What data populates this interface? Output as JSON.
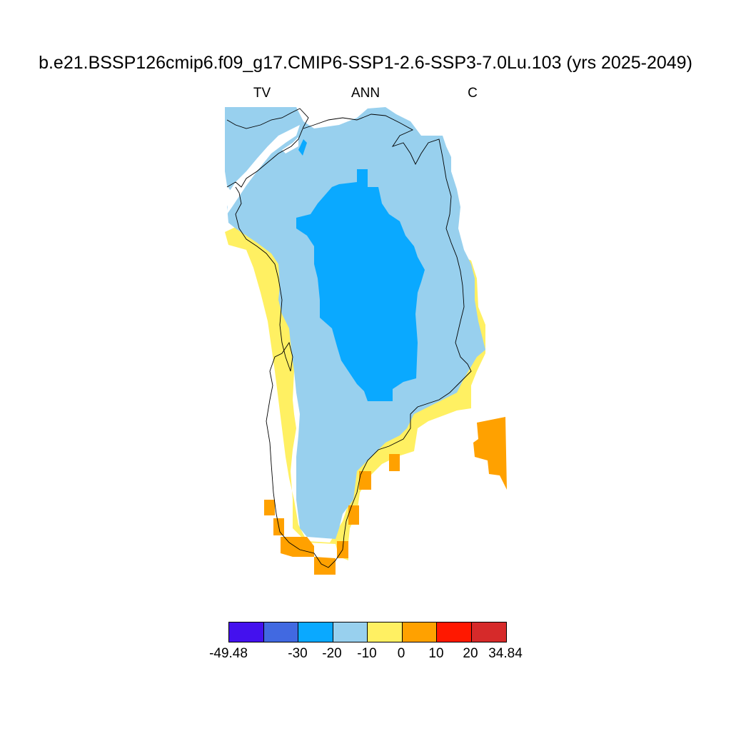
{
  "title": "b.e21.BSSP126cmip6.f09_g17.CMIP6-SSP1-2.6-SSP3-7.0Lu.103 (yrs 2025-2049)",
  "labels": {
    "left": "TV",
    "center": "ANN",
    "right": "C"
  },
  "legend": {
    "colors": [
      "#4411ee",
      "#4169e1",
      "#0aa9ff",
      "#98d0ee",
      "#fff062",
      "#ffa100",
      "#ff1800",
      "#d62a2a"
    ],
    "ticks": [
      "-49.48",
      "-30",
      "-20",
      "-10",
      "0",
      "10",
      "20",
      "34.84"
    ]
  },
  "map": {
    "region": "Greenland",
    "field_colors": {
      "deep_interior": "#0aa9ff",
      "interior": "#98d0ee",
      "coastal_margin": "#fff062",
      "southern_edge": "#ffa100"
    }
  }
}
